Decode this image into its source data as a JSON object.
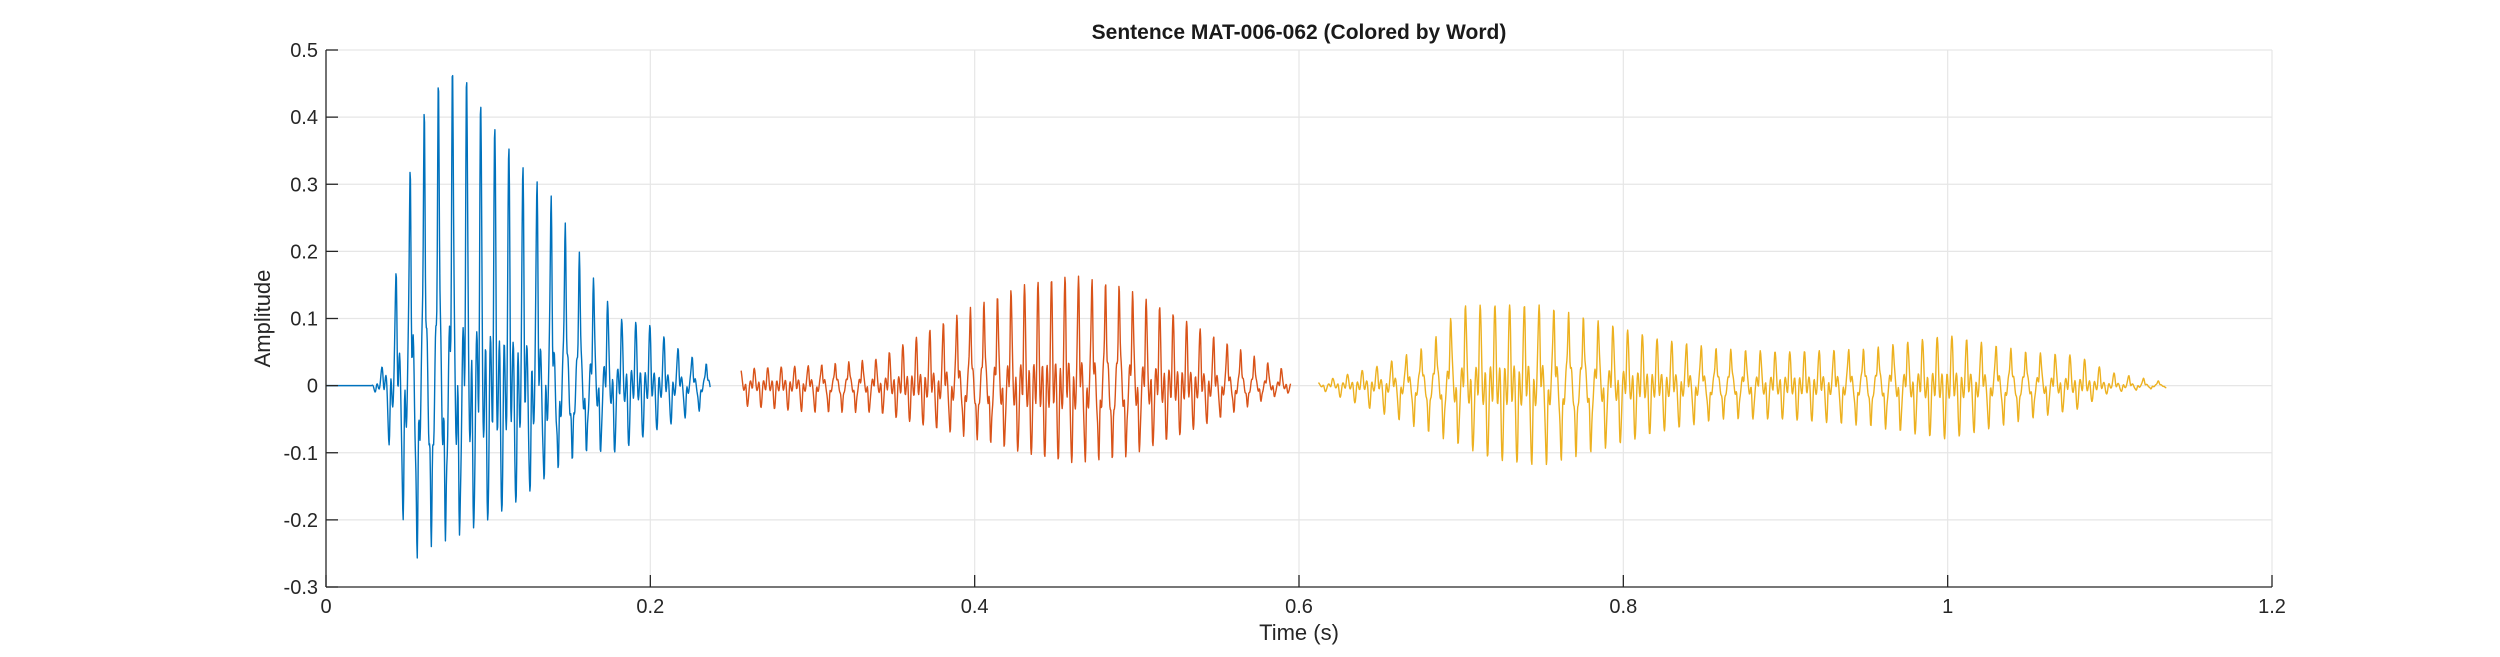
{
  "chart_data": {
    "type": "line",
    "title": "Sentence MAT-006-062 (Colored by Word)",
    "xlabel": "Time (s)",
    "ylabel": "Amplitude",
    "xlim": [
      0,
      1.2
    ],
    "ylim": [
      -0.3,
      0.5
    ],
    "xticks": [
      0,
      0.2,
      0.4,
      0.6,
      0.8,
      1,
      1.2
    ],
    "xtick_labels": [
      "0",
      "0.2",
      "0.4",
      "0.6",
      "0.8",
      "1",
      "1.2"
    ],
    "yticks": [
      -0.3,
      -0.2,
      -0.1,
      0,
      0.1,
      0.2,
      0.3,
      0.4,
      0.5
    ],
    "ytick_labels": [
      "-0.3",
      "-0.2",
      "-0.1",
      "0",
      "0.1",
      "0.2",
      "0.3",
      "0.4",
      "0.5"
    ],
    "grid": true,
    "legend": "none",
    "series": [
      {
        "color": "#0072BD",
        "segment": [
          0,
          0.237
        ],
        "envelope": {
          "t": [
            0,
            0.028,
            0.035,
            0.045,
            0.055,
            0.065,
            0.075,
            0.085,
            0.1,
            0.12,
            0.14,
            0.16,
            0.18,
            0.2,
            0.22,
            0.237
          ],
          "max": [
            0,
            0.0,
            0.03,
            0.2,
            0.38,
            0.44,
            0.48,
            0.47,
            0.4,
            0.33,
            0.28,
            0.18,
            0.1,
            0.09,
            0.05,
            0.03
          ],
          "min": [
            0,
            0.0,
            -0.03,
            -0.18,
            -0.26,
            -0.24,
            -0.23,
            -0.22,
            -0.2,
            -0.17,
            -0.13,
            -0.1,
            -0.1,
            -0.07,
            -0.05,
            -0.03
          ]
        }
      },
      {
        "color": "#D95319",
        "segment": [
          0.256,
          0.595
        ],
        "envelope": {
          "t": [
            0.256,
            0.3,
            0.34,
            0.37,
            0.4,
            0.43,
            0.46,
            0.49,
            0.52,
            0.55,
            0.58,
            0.595
          ],
          "max": [
            0.025,
            0.03,
            0.04,
            0.08,
            0.12,
            0.15,
            0.165,
            0.15,
            0.11,
            0.07,
            0.035,
            0.02
          ],
          "min": [
            -0.03,
            -0.04,
            -0.04,
            -0.06,
            -0.08,
            -0.1,
            -0.115,
            -0.11,
            -0.08,
            -0.05,
            -0.02,
            -0.01
          ]
        }
      },
      {
        "color": "#EDB120",
        "segment": [
          0.612,
          1.135
        ],
        "envelope": {
          "t": [
            0.612,
            0.65,
            0.68,
            0.7,
            0.72,
            0.75,
            0.78,
            0.82,
            0.86,
            0.9,
            0.95,
            1.0,
            1.05,
            1.08,
            1.1,
            1.135
          ],
          "max": [
            0.005,
            0.03,
            0.06,
            0.12,
            0.12,
            0.12,
            0.1,
            0.07,
            0.055,
            0.05,
            0.055,
            0.075,
            0.05,
            0.045,
            0.02,
            0.005
          ],
          "min": [
            -0.005,
            -0.04,
            -0.07,
            -0.09,
            -0.11,
            -0.12,
            -0.1,
            -0.07,
            -0.05,
            -0.05,
            -0.06,
            -0.08,
            -0.05,
            -0.035,
            -0.01,
            -0.003
          ]
        }
      }
    ]
  }
}
